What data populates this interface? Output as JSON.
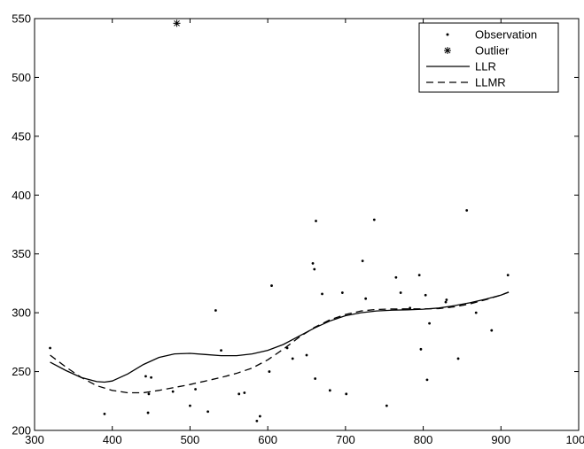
{
  "chart_data": {
    "type": "scatter",
    "title": "",
    "xlabel": "",
    "ylabel": "",
    "xlim": [
      300,
      1000
    ],
    "ylim": [
      200,
      550
    ],
    "xticks": [
      300,
      400,
      500,
      600,
      700,
      800,
      900,
      1000
    ],
    "yticks": [
      200,
      250,
      300,
      350,
      400,
      450,
      500,
      550
    ],
    "grid": false,
    "legend_position": "top-right",
    "legend": [
      {
        "label": "Observation",
        "marker": "dot"
      },
      {
        "label": "Outlier",
        "marker": "asterisk"
      },
      {
        "label": "LLR",
        "line": "solid"
      },
      {
        "label": "LLMR",
        "line": "dashed"
      }
    ],
    "series": [
      {
        "name": "Observation",
        "kind": "points",
        "points": [
          [
            320,
            270
          ],
          [
            390,
            214
          ],
          [
            443,
            246
          ],
          [
            446,
            215
          ],
          [
            447,
            231
          ],
          [
            450,
            245
          ],
          [
            478,
            233
          ],
          [
            500,
            221
          ],
          [
            507,
            235
          ],
          [
            523,
            216
          ],
          [
            533,
            302
          ],
          [
            540,
            268
          ],
          [
            563,
            231
          ],
          [
            570,
            232
          ],
          [
            586,
            208
          ],
          [
            590,
            212
          ],
          [
            602,
            250
          ],
          [
            605,
            323
          ],
          [
            625,
            270
          ],
          [
            632,
            261
          ],
          [
            650,
            264
          ],
          [
            658,
            342
          ],
          [
            660,
            337
          ],
          [
            661,
            244
          ],
          [
            662,
            378
          ],
          [
            670,
            316
          ],
          [
            680,
            234
          ],
          [
            696,
            317
          ],
          [
            701,
            231
          ],
          [
            722,
            344
          ],
          [
            726,
            312
          ],
          [
            737,
            379
          ],
          [
            753,
            221
          ],
          [
            765,
            330
          ],
          [
            771,
            317
          ],
          [
            783,
            304
          ],
          [
            795,
            332
          ],
          [
            797,
            269
          ],
          [
            803,
            315
          ],
          [
            805,
            243
          ],
          [
            808,
            291
          ],
          [
            829,
            309
          ],
          [
            830,
            311
          ],
          [
            845,
            261
          ],
          [
            856,
            387
          ],
          [
            868,
            300
          ],
          [
            888,
            285
          ],
          [
            909,
            332
          ]
        ]
      },
      {
        "name": "Outlier",
        "kind": "points",
        "points": [
          [
            483,
            546
          ]
        ]
      },
      {
        "name": "LLR",
        "kind": "line",
        "points": [
          [
            320,
            258
          ],
          [
            340,
            251
          ],
          [
            360,
            245
          ],
          [
            380,
            241.5
          ],
          [
            390,
            241
          ],
          [
            400,
            242
          ],
          [
            420,
            248
          ],
          [
            440,
            256
          ],
          [
            460,
            262
          ],
          [
            480,
            265
          ],
          [
            500,
            265.5
          ],
          [
            520,
            264.5
          ],
          [
            540,
            263.5
          ],
          [
            560,
            263.5
          ],
          [
            580,
            265
          ],
          [
            600,
            268
          ],
          [
            620,
            273
          ],
          [
            640,
            280
          ],
          [
            660,
            287
          ],
          [
            680,
            293
          ],
          [
            700,
            297.5
          ],
          [
            720,
            300
          ],
          [
            740,
            301.5
          ],
          [
            760,
            302.2
          ],
          [
            780,
            302.5
          ],
          [
            800,
            303
          ],
          [
            820,
            304
          ],
          [
            840,
            306
          ],
          [
            860,
            308.5
          ],
          [
            880,
            311.5
          ],
          [
            900,
            315
          ],
          [
            910,
            317.5
          ]
        ]
      },
      {
        "name": "LLMR",
        "kind": "line",
        "points": [
          [
            320,
            264
          ],
          [
            340,
            254
          ],
          [
            360,
            245
          ],
          [
            380,
            238
          ],
          [
            400,
            234
          ],
          [
            420,
            232
          ],
          [
            440,
            232
          ],
          [
            460,
            234
          ],
          [
            480,
            236.5
          ],
          [
            500,
            239
          ],
          [
            520,
            242
          ],
          [
            540,
            245
          ],
          [
            560,
            248.5
          ],
          [
            580,
            253
          ],
          [
            600,
            260
          ],
          [
            620,
            269
          ],
          [
            640,
            279
          ],
          [
            660,
            287.5
          ],
          [
            680,
            294
          ],
          [
            700,
            298.5
          ],
          [
            720,
            301.5
          ],
          [
            740,
            302.8
          ],
          [
            760,
            303.2
          ],
          [
            780,
            303.3
          ],
          [
            800,
            303.3
          ],
          [
            820,
            303.5
          ],
          [
            840,
            305
          ],
          [
            860,
            307.5
          ],
          [
            880,
            311
          ],
          [
            900,
            315
          ],
          [
            910,
            317.5
          ]
        ]
      }
    ]
  }
}
